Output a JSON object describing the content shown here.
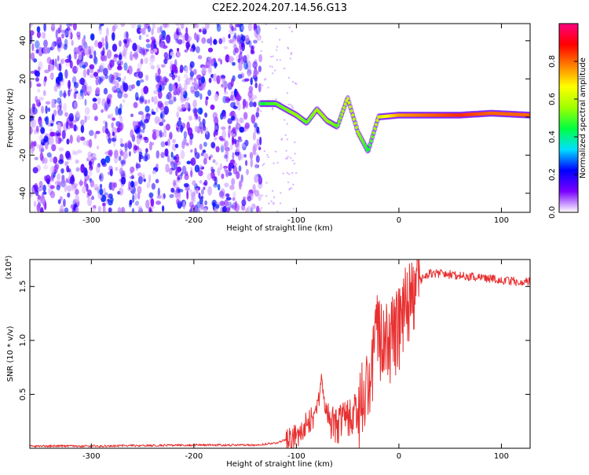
{
  "title": "C2E2.2024.207.14.56.G13",
  "chart_data": [
    {
      "type": "heatmap",
      "xlabel": "Height of straight line (km)",
      "ylabel": "Frequency (Hz)",
      "xlim": [
        -360,
        128
      ],
      "ylim": [
        -50,
        49
      ],
      "xticks": [
        -300,
        -200,
        -100,
        0,
        100
      ],
      "yticks": [
        -40,
        -20,
        0,
        20,
        40
      ],
      "colorbar": {
        "label": "Normalized spectral amplitude",
        "range": [
          0.0,
          1.0
        ],
        "ticks": [
          0.0,
          0.2,
          0.4,
          0.6,
          0.8
        ],
        "tick_labels": [
          "0.0",
          "0.2",
          "0.4",
          "0.6",
          "0.8"
        ],
        "colors": [
          "#ffffff",
          "#7a00ff",
          "#0000ff",
          "#00e0ff",
          "#00ff40",
          "#a0ff00",
          "#ffff00",
          "#ff8000",
          "#ff0000",
          "#ff0080"
        ]
      },
      "noise_region_km": [
        -360,
        -135
      ],
      "signal_track": [
        {
          "x": -135,
          "freq": 7,
          "amp": 0.45
        },
        {
          "x": -120,
          "freq": 7,
          "amp": 0.5
        },
        {
          "x": -100,
          "freq": 1,
          "amp": 0.55
        },
        {
          "x": -90,
          "freq": -3,
          "amp": 0.5
        },
        {
          "x": -80,
          "freq": 4,
          "amp": 0.55
        },
        {
          "x": -70,
          "freq": -2,
          "amp": 0.55
        },
        {
          "x": -60,
          "freq": -5,
          "amp": 0.5
        },
        {
          "x": -50,
          "freq": 10,
          "amp": 0.6
        },
        {
          "x": -40,
          "freq": -8,
          "amp": 0.55
        },
        {
          "x": -30,
          "freq": -18,
          "amp": 0.45
        },
        {
          "x": -20,
          "freq": 0,
          "amp": 0.6
        },
        {
          "x": 0,
          "freq": 1,
          "amp": 0.75
        },
        {
          "x": 30,
          "freq": 1,
          "amp": 0.8
        },
        {
          "x": 60,
          "freq": 1,
          "amp": 0.85
        },
        {
          "x": 90,
          "freq": 2,
          "amp": 0.8
        },
        {
          "x": 128,
          "freq": 1,
          "amp": 0.8
        }
      ]
    },
    {
      "type": "line",
      "xlabel": "Height of straight line (km)",
      "ylabel": "SNR (10 * v/v)",
      "multiplier": "(x10⁴)",
      "xlim": [
        -360,
        128
      ],
      "ylim": [
        0,
        1.75
      ],
      "xticks": [
        -300,
        -200,
        -100,
        0,
        100
      ],
      "yticks": [
        0.5,
        1.0,
        1.5
      ],
      "ytick_labels": [
        "0.5",
        "1.0",
        "1.5"
      ],
      "color": "#e83030",
      "series": [
        {
          "name": "SNR",
          "x": [
            -360,
            -300,
            -200,
            -140,
            -120,
            -110,
            -100,
            -90,
            -80,
            -75,
            -70,
            -60,
            -50,
            -40,
            -30,
            -25,
            -20,
            -15,
            -10,
            -5,
            0,
            10,
            20,
            30,
            40,
            60,
            80,
            100,
            120,
            128
          ],
          "values": [
            0.02,
            0.02,
            0.03,
            0.03,
            0.05,
            0.08,
            0.12,
            0.22,
            0.35,
            0.65,
            0.3,
            0.2,
            0.28,
            0.35,
            0.45,
            0.9,
            1.05,
            0.85,
            1.0,
            1.05,
            1.1,
            1.35,
            1.55,
            1.62,
            1.62,
            1.6,
            1.58,
            1.56,
            1.54,
            1.55
          ]
        }
      ]
    }
  ]
}
